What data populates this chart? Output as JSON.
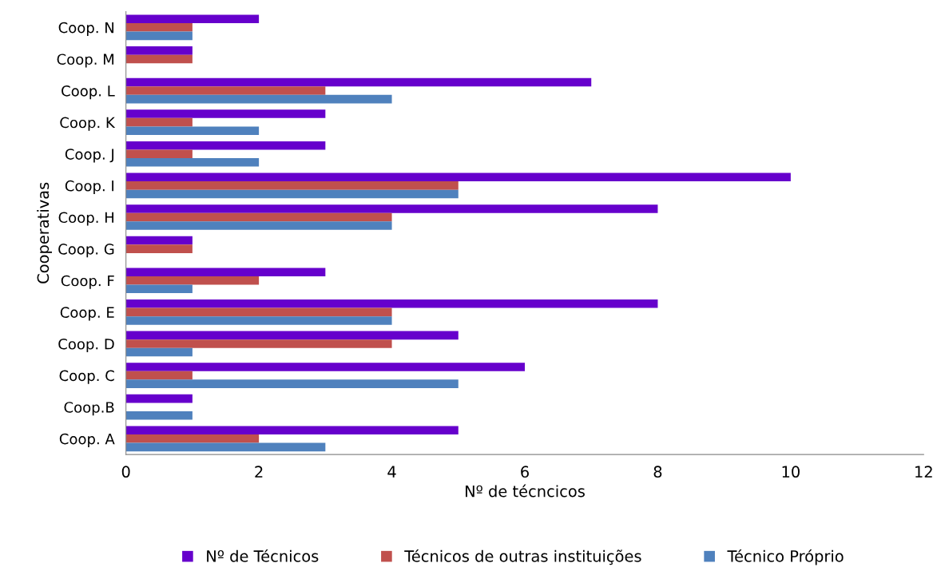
{
  "chart_data": {
    "type": "bar",
    "orientation": "horizontal",
    "xlabel": "Nº de técncicos",
    "ylabel": "Cooperativas",
    "categories": [
      "Coop. N",
      "Coop. M",
      "Coop. L",
      "Coop. K",
      "Coop. J",
      "Coop. I",
      "Coop. H",
      "Coop. G",
      "Coop. F",
      "Coop. E",
      "Coop. D",
      "Coop. C",
      "Coop.B",
      "Coop. A"
    ],
    "series": [
      {
        "name": "Nº de Técnicos",
        "color": "#6600cc",
        "values": [
          2,
          1,
          7,
          3,
          3,
          10,
          8,
          1,
          3,
          8,
          5,
          6,
          1,
          5
        ]
      },
      {
        "name": "Técnicos de outras instituições",
        "color": "#c0504d",
        "values": [
          1,
          1,
          3,
          1,
          1,
          5,
          4,
          1,
          2,
          4,
          4,
          1,
          0,
          2
        ]
      },
      {
        "name": "Técnico Próprio",
        "color": "#4f81bd",
        "values": [
          1,
          0,
          4,
          2,
          2,
          5,
          4,
          0,
          1,
          4,
          1,
          5,
          1,
          3
        ]
      }
    ],
    "xlim": [
      0,
      12
    ],
    "xticks": [
      0,
      2,
      4,
      6,
      8,
      10,
      12
    ],
    "grid": false,
    "legend": "bottom"
  }
}
